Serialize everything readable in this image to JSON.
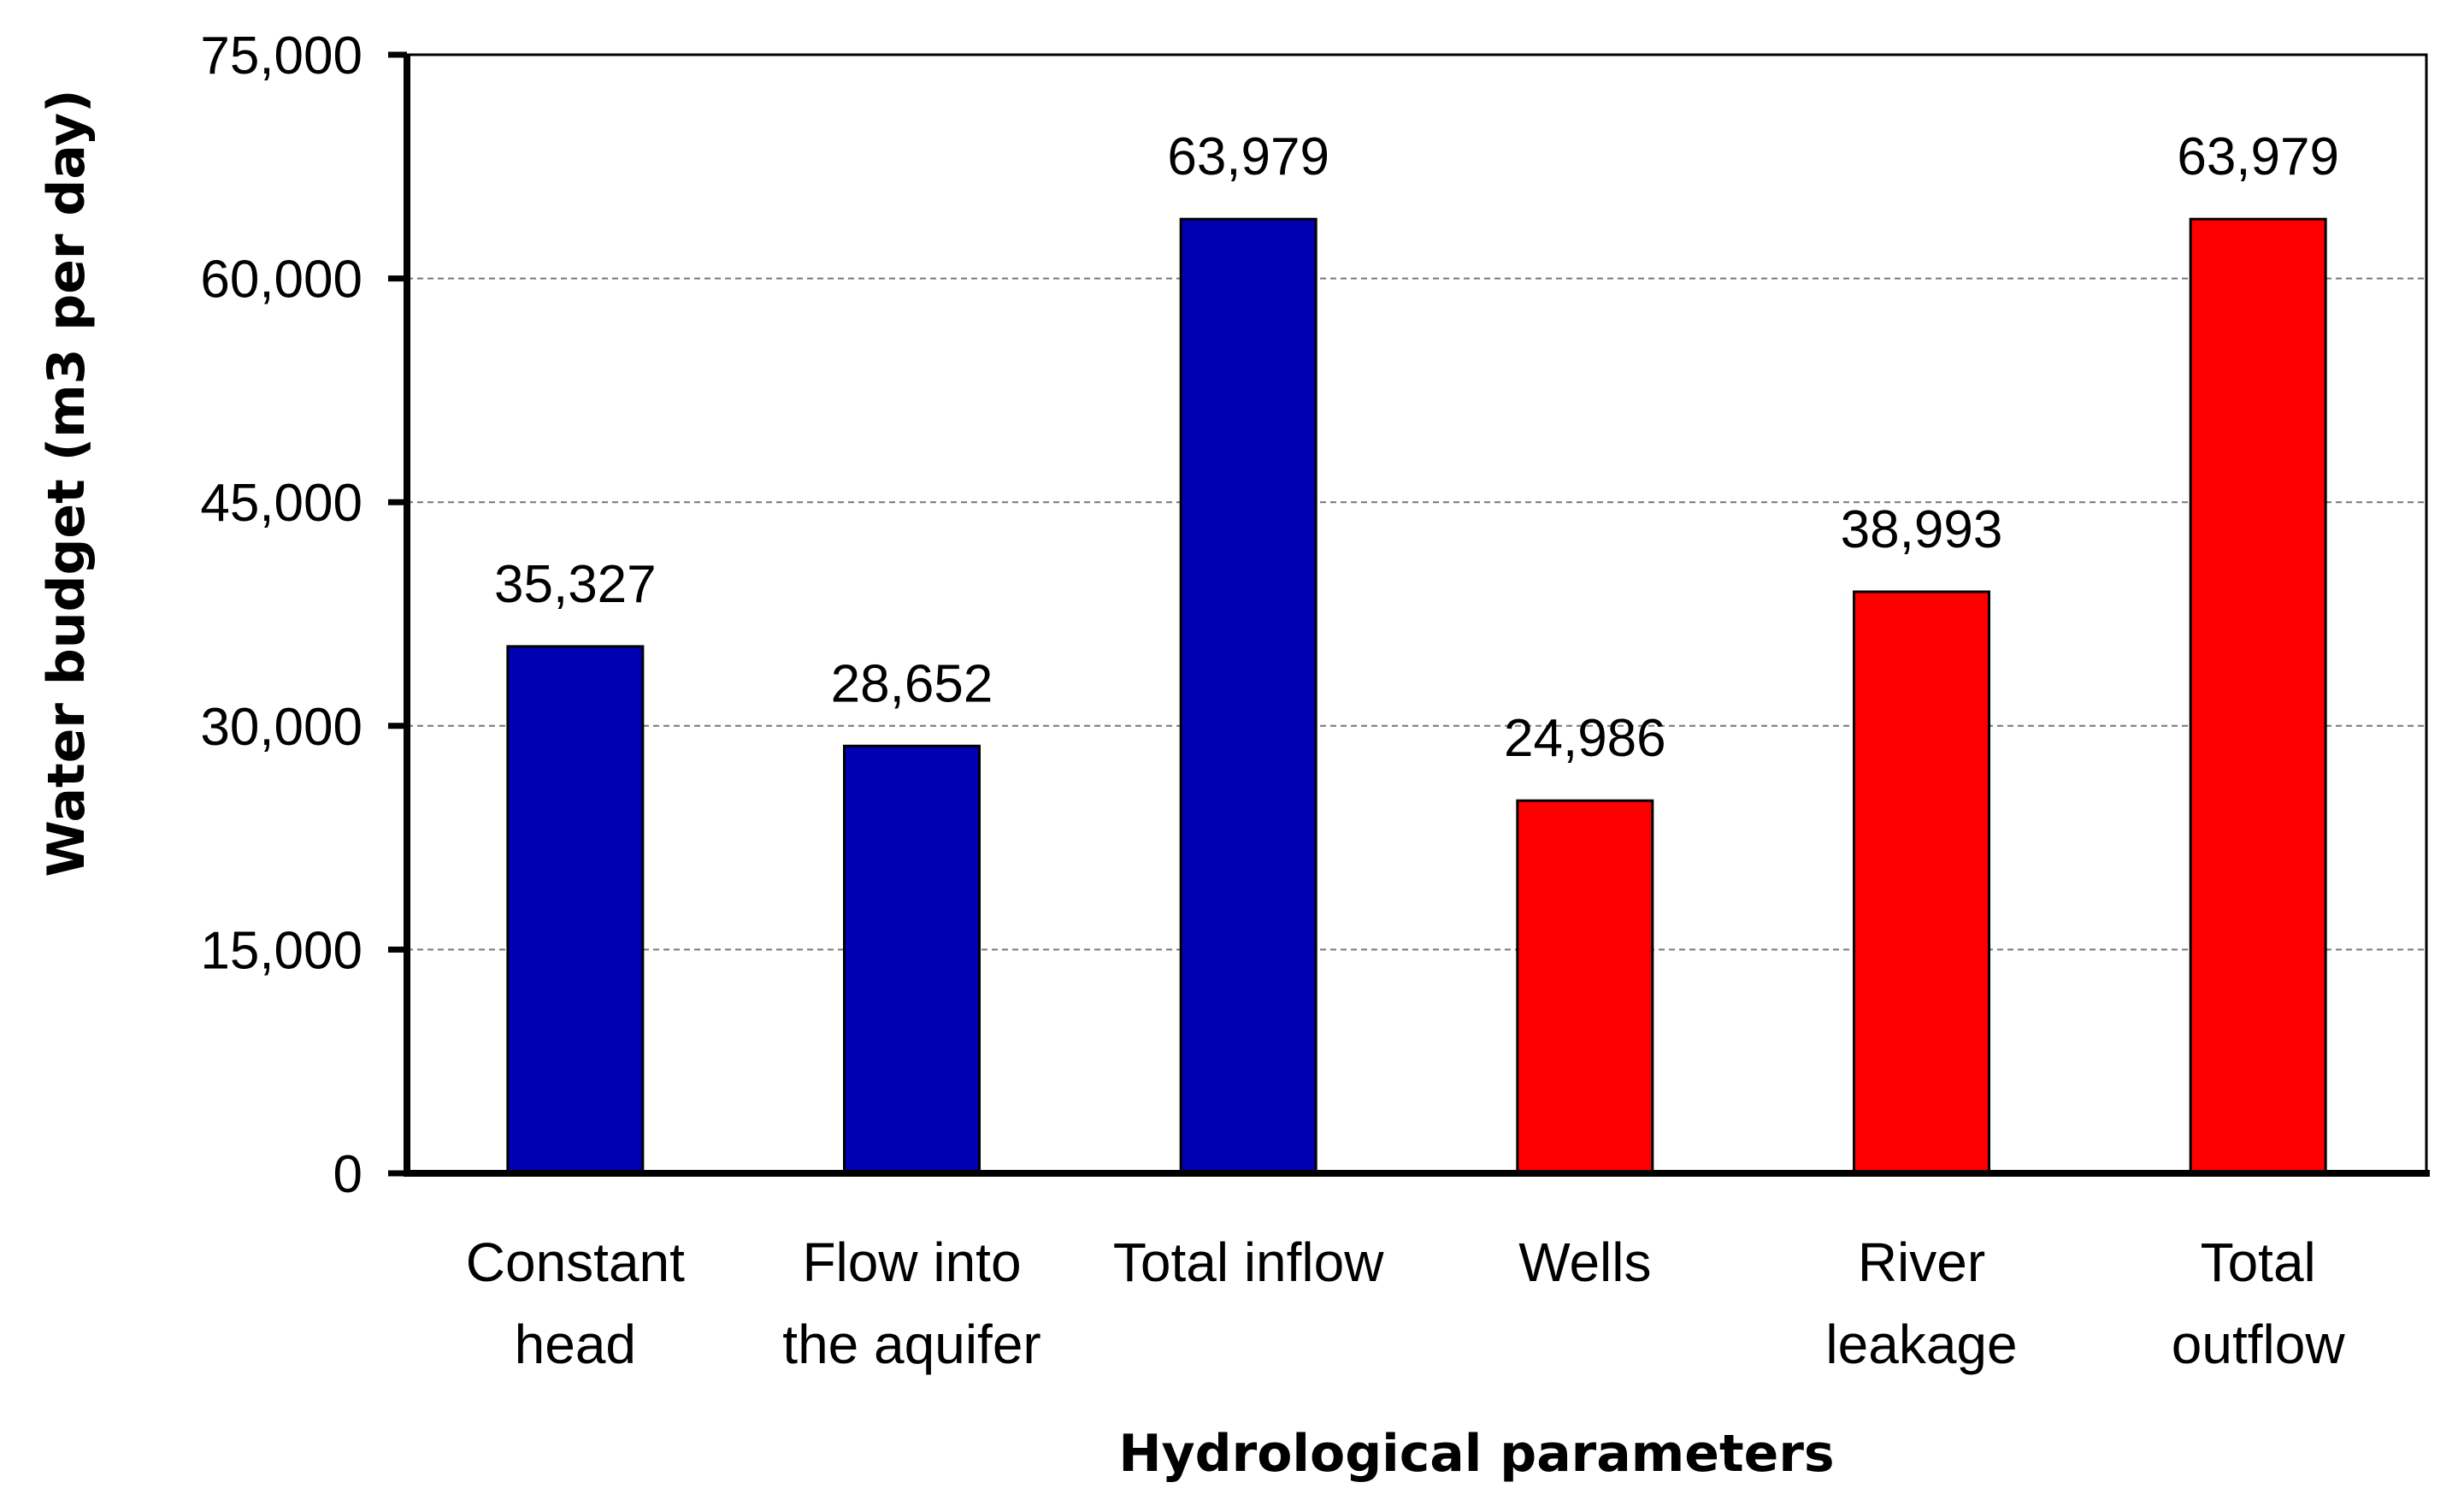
{
  "chart_data": {
    "type": "bar",
    "xlabel": "Hydrological parameters",
    "ylabel": "Water budget (m3 per day)",
    "ylim": [
      0,
      75000
    ],
    "yticks": [
      0,
      15000,
      30000,
      45000,
      60000,
      75000
    ],
    "ytick_labels": [
      "0",
      "15,000",
      "30,000",
      "45,000",
      "60,000",
      "75,000"
    ],
    "grid": "horizontal dashed",
    "legend": "none",
    "categories": [
      [
        "Constant",
        "head"
      ],
      [
        "Flow into",
        "the aquifer"
      ],
      [
        "Total inflow"
      ],
      [
        "Wells"
      ],
      [
        "River",
        "leakage"
      ],
      [
        "Total",
        "outflow"
      ]
    ],
    "values": [
      35327,
      28652,
      63979,
      24986,
      38993,
      63979
    ],
    "value_labels": [
      "35,327",
      "28,652",
      "63,979",
      "24,986",
      "38,993",
      "63,979"
    ],
    "bar_colors": [
      "#0000b3",
      "#0000b3",
      "#0000b3",
      "#ff0000",
      "#ff0000",
      "#ff0000"
    ]
  }
}
